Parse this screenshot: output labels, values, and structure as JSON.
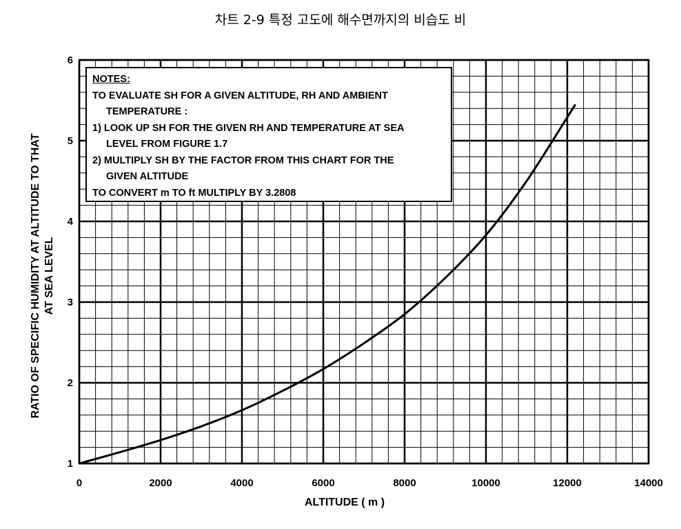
{
  "chart_data": {
    "type": "line",
    "title": "차트 2-9 특정 고도에 해수면까지의 비습도 비",
    "xlabel": "ALTITUDE ( m )",
    "ylabel_lines": [
      "RATIO OF SPECIFIC HUMIDITY AT ALTITUDE TO THAT",
      "AT SEA LEVEL"
    ],
    "xlim": [
      0,
      14000
    ],
    "ylim": [
      1,
      6
    ],
    "x_ticks": [
      "0",
      "2000",
      "4000",
      "6000",
      "8000",
      "10000",
      "12000",
      "14000"
    ],
    "y_ticks": [
      "1",
      "2",
      "3",
      "4",
      "5",
      "6"
    ],
    "grid": true,
    "series": [
      {
        "x": [
          0,
          1000,
          2000,
          3000,
          4000,
          5000,
          6000,
          7000,
          8000,
          9000,
          10000,
          11000,
          12000,
          12200
        ],
        "values": [
          1.0,
          1.14,
          1.29,
          1.46,
          1.66,
          1.9,
          2.17,
          2.49,
          2.85,
          3.3,
          3.83,
          4.5,
          5.29,
          5.45
        ]
      }
    ],
    "notes": {
      "heading": "NOTES:",
      "lines": [
        "TO EVALUATE SH FOR A GIVEN ALTITUDE, RH AND AMBIENT",
        "TEMPERATURE :",
        "1) LOOK UP SH FOR THE GIVEN RH AND TEMPERATURE AT SEA",
        "LEVEL FROM FIGURE 1.7",
        "2) MULTIPLY SH BY THE FACTOR FROM THIS CHART FOR THE",
        "GIVEN ALTITUDE",
        "TO CONVERT m TO ft MULTIPLY BY 3.2808"
      ]
    }
  }
}
